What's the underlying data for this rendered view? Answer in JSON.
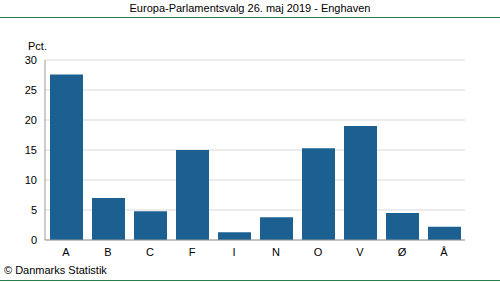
{
  "chart_data": {
    "type": "bar",
    "title": "Europa-Parlamentsvalg 26. maj 2019 - Enghaven",
    "ylabel": "Pct.",
    "source": "© Danmarks Statistik",
    "categories": [
      "A",
      "B",
      "C",
      "F",
      "I",
      "N",
      "O",
      "V",
      "Ø",
      "Å"
    ],
    "values": [
      27.6,
      7.0,
      4.8,
      15.0,
      1.3,
      3.8,
      15.3,
      19.0,
      4.5,
      2.2
    ],
    "color": "#1b6090",
    "ylim": [
      0,
      30
    ],
    "yticks": [
      0,
      5,
      10,
      15,
      20,
      25,
      30
    ],
    "grid": true
  }
}
